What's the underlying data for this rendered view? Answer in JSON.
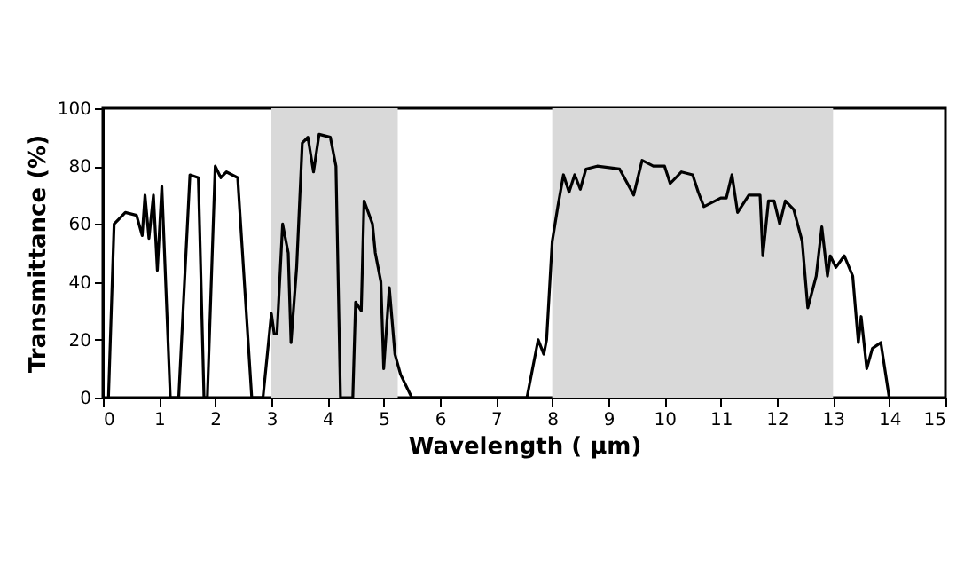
{
  "chart_data": {
    "type": "line",
    "xlabel": "Wavelength ( μm)",
    "ylabel": "Transmittance (%)",
    "xlim": [
      0,
      15
    ],
    "xticks": [
      0,
      1,
      2,
      3,
      4,
      5,
      6,
      7,
      8,
      9,
      10,
      11,
      12,
      13,
      14,
      15
    ],
    "ylim": [
      0,
      100
    ],
    "yticks": [
      0,
      20,
      40,
      60,
      80,
      100
    ],
    "grid": false,
    "marker": "none",
    "line_style": "solid",
    "bands": [
      {
        "axis": "x",
        "from": 3,
        "to": 5.25,
        "color": "#d9d9d9"
      },
      {
        "axis": "x",
        "from": 8,
        "to": 13,
        "color": "#d9d9d9"
      }
    ],
    "series": [
      {
        "color": "#000000",
        "x": [
          0.1,
          0.2,
          0.4,
          0.6,
          0.7,
          0.75,
          0.82,
          0.9,
          0.97,
          1.05,
          1.2,
          1.35,
          1.55,
          1.7,
          1.8,
          1.86,
          2.0,
          2.1,
          2.2,
          2.4,
          2.65,
          2.85,
          3.0,
          3.05,
          3.1,
          3.2,
          3.3,
          3.35,
          3.45,
          3.55,
          3.65,
          3.75,
          3.85,
          4.05,
          4.15,
          4.23,
          4.45,
          4.5,
          4.6,
          4.65,
          4.8,
          4.85,
          4.95,
          5.0,
          5.1,
          5.2,
          5.3,
          5.5,
          7.55,
          7.75,
          7.85,
          7.9,
          8.0,
          8.1,
          8.2,
          8.3,
          8.4,
          8.5,
          8.6,
          8.8,
          9.2,
          9.45,
          9.6,
          9.8,
          10.0,
          10.1,
          10.3,
          10.5,
          10.6,
          10.7,
          11.0,
          11.1,
          11.2,
          11.3,
          11.5,
          11.7,
          11.75,
          11.85,
          11.95,
          12.05,
          12.15,
          12.3,
          12.45,
          12.55,
          12.7,
          12.8,
          12.9,
          12.95,
          13.05,
          13.2,
          13.35,
          13.45,
          13.5,
          13.6,
          13.7,
          13.85,
          14.0
        ],
        "values": [
          0,
          60,
          64,
          63,
          56,
          70,
          55,
          70,
          44,
          73,
          0,
          0,
          77,
          76,
          0,
          0,
          80,
          76,
          78,
          76,
          0,
          0,
          29,
          22,
          22,
          60,
          50,
          19,
          45,
          88,
          90,
          78,
          91,
          90,
          80,
          0,
          0,
          33,
          30,
          68,
          60,
          50,
          40,
          10,
          38,
          15,
          8,
          0,
          0,
          20,
          15,
          20,
          54,
          66,
          77,
          71,
          77,
          72,
          79,
          80,
          79,
          70,
          82,
          80,
          80,
          74,
          78,
          77,
          71,
          66,
          69,
          69,
          77,
          64,
          70,
          70,
          49,
          68,
          68,
          60,
          68,
          65,
          54,
          31,
          42,
          59,
          42,
          49,
          45,
          49,
          42,
          19,
          28,
          10,
          17,
          19,
          0
        ]
      }
    ]
  }
}
